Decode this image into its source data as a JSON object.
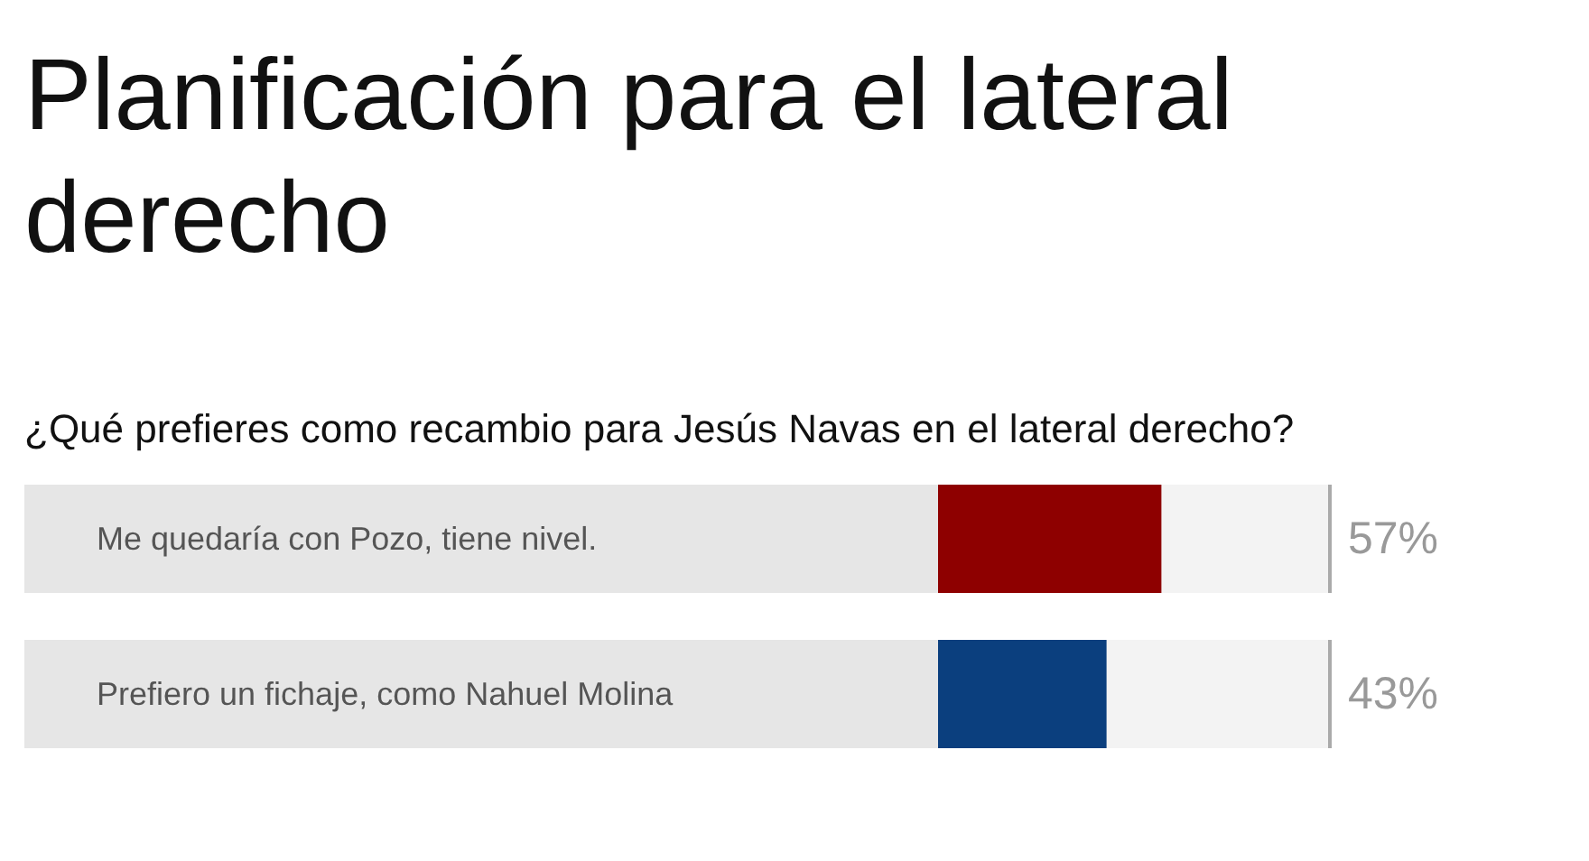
{
  "chart_data": {
    "type": "bar",
    "orientation": "horizontal",
    "title": "Planificación para el lateral derecho",
    "subtitle": "¿Qué prefieres como recambio para Jesús Navas en el lateral derecho?",
    "categories": [
      "Me quedaría con Pozo, tiene nivel.",
      "Prefiero un fichaje, como Nahuel Molina"
    ],
    "values": [
      57,
      43
    ],
    "colors": [
      "#8e0000",
      "#0b3f7e"
    ],
    "xlim": [
      0,
      100
    ],
    "data_labels": true,
    "value_labels": [
      "57%",
      "43%"
    ]
  }
}
